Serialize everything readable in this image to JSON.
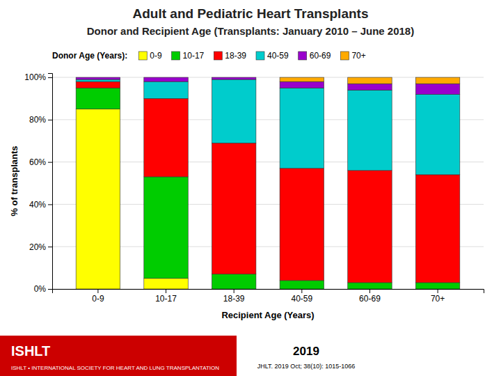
{
  "chart_data": {
    "type": "bar",
    "stacked": true,
    "title": "Adult and Pediatric Heart Transplants",
    "subtitle": "Donor and Recipient Age (Transplants: January 2010 – June 2018)",
    "x_label": "Recipient Age (Years)",
    "y_label": "% of transplants",
    "legend_title": "Donor Age (Years):",
    "legend": "top",
    "grid": true,
    "categories": [
      "0-9",
      "10-17",
      "18-39",
      "40-59",
      "60-69",
      "70+"
    ],
    "series": [
      {
        "name": "0-9",
        "color": "#FFFF00",
        "values": [
          85,
          5,
          0,
          0,
          0,
          0
        ]
      },
      {
        "name": "10-17",
        "color": "#00CC00",
        "values": [
          10,
          48,
          7,
          4,
          3,
          3
        ]
      },
      {
        "name": "18-39",
        "color": "#FF0000",
        "values": [
          3,
          37,
          62,
          53,
          53,
          51
        ]
      },
      {
        "name": "40-59",
        "color": "#00CCCC",
        "values": [
          1,
          8,
          30,
          38,
          38,
          38
        ]
      },
      {
        "name": "60-69",
        "color": "#9900CC",
        "values": [
          1,
          2,
          1,
          3,
          3,
          5
        ]
      },
      {
        "name": "70+",
        "color": "#FFAA00",
        "values": [
          0,
          0,
          0,
          2,
          3,
          3
        ]
      }
    ],
    "ylim": [
      0,
      102
    ],
    "yticks": [
      {
        "value": 0,
        "label": "0%"
      },
      {
        "value": 20,
        "label": "20%"
      },
      {
        "value": 40,
        "label": "40%"
      },
      {
        "value": 60,
        "label": "60%"
      },
      {
        "value": 80,
        "label": "80%"
      },
      {
        "value": 100,
        "label": "100%"
      }
    ],
    "annotations": [
      "ISHLT",
      "ISHLT • INTERNATIONAL SOCIETY FOR HEART AND LUNG TRANSPLANTATION",
      "2019",
      "JHLT. 2019 Oct; 38(10): 1015-1066"
    ]
  }
}
